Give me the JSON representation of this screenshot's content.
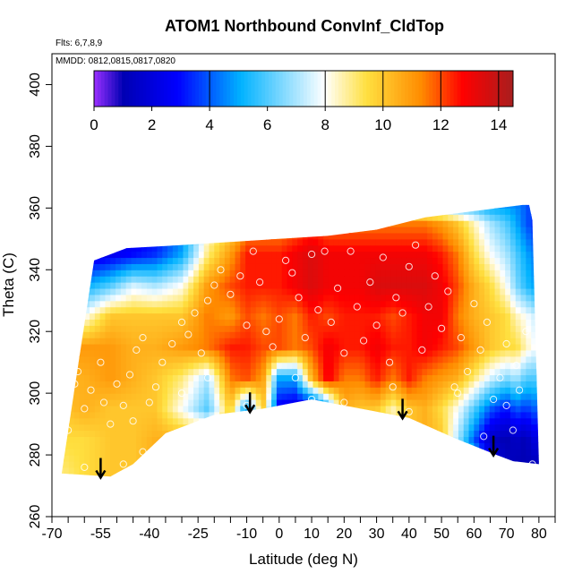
{
  "chart_data": {
    "type": "heatmap",
    "title": "ATOM1 Northbound ConvInf_CldTop",
    "annotations": [
      "Flts: 6,7,8,9",
      "MMDD: 0812,0815,0817,0820"
    ],
    "xlabel": "Latitude (deg N)",
    "ylabel": "Theta (C)",
    "xlim": [
      -70,
      85
    ],
    "ylim": [
      260,
      410
    ],
    "x_ticks": [
      -70,
      -55,
      -40,
      -25,
      -10,
      0,
      10,
      20,
      30,
      40,
      50,
      60,
      70,
      80
    ],
    "x_tick_labels": [
      "-70",
      "-55",
      "-40",
      "-25",
      "-10",
      "0",
      "10",
      "20",
      "30",
      "40",
      "50",
      "60",
      "70",
      "80"
    ],
    "x_minor_ticks": [
      -65,
      -60,
      -50,
      -45,
      -35,
      -30,
      -20,
      -15,
      -5,
      5,
      15,
      25,
      35,
      45,
      55,
      65,
      75,
      85
    ],
    "y_ticks": [
      260,
      280,
      300,
      320,
      340,
      360,
      380,
      400
    ],
    "y_tick_labels": [
      "260",
      "280",
      "300",
      "320",
      "340",
      "360",
      "380",
      "400"
    ],
    "colorbar": {
      "range": [
        0,
        14.5
      ],
      "ticks": [
        0,
        2,
        4,
        6,
        8,
        10,
        12,
        14
      ],
      "tick_labels": [
        "0",
        "2",
        "4",
        "6",
        "8",
        "10",
        "12",
        "14"
      ],
      "divisions": [
        4,
        8,
        10,
        12,
        14
      ],
      "colors": [
        "#9b30ff",
        "#0000b4",
        "#0000ff",
        "#00b2ff",
        "#ffffff",
        "#ffe040",
        "#ff8c00",
        "#ff0000",
        "#a81e1e"
      ],
      "stops": [
        0,
        0.07,
        0.2,
        0.35,
        0.55,
        0.65,
        0.78,
        0.88,
        1.0
      ]
    },
    "field": {
      "lats": [
        -67,
        -60,
        -52,
        -45,
        -38,
        -30,
        -22,
        -15,
        -10,
        -5,
        0,
        5,
        10,
        15,
        20,
        25,
        30,
        35,
        40,
        45,
        50,
        55,
        60,
        65,
        70,
        73,
        76,
        78
      ],
      "thetas": [
        275,
        285,
        295,
        305,
        315,
        325,
        335,
        345,
        355,
        362
      ],
      "values": [
        [
          9,
          9.5,
          10,
          10,
          10.5,
          10.5,
          10,
          10,
          10,
          10,
          10,
          10,
          10,
          10,
          10,
          10,
          10,
          10,
          10,
          10.5,
          10,
          9,
          7,
          3,
          1.5,
          1,
          1,
          1
        ],
        [
          9.5,
          9.5,
          10,
          10,
          10.5,
          10.5,
          10,
          10,
          4.5,
          10,
          3,
          2,
          2,
          3,
          9.5,
          10,
          10,
          9,
          10,
          10.5,
          10,
          7,
          4,
          1.5,
          1,
          1.5,
          1,
          2
        ],
        [
          10,
          10.5,
          10,
          10,
          10,
          8,
          6,
          10,
          4.5,
          10,
          2.5,
          2,
          1.5,
          5,
          10.5,
          10,
          10,
          8.5,
          10,
          10.5,
          9.5,
          8,
          6,
          4,
          3,
          4,
          3.5,
          4
        ],
        [
          10.5,
          10.5,
          11,
          10.5,
          10,
          9,
          7,
          11.5,
          12,
          11,
          5,
          5,
          10.5,
          13,
          11.5,
          11.5,
          12.5,
          11.5,
          12.5,
          11.5,
          11,
          10.5,
          9,
          7.5,
          6.5,
          7,
          6,
          6
        ],
        [
          11,
          11,
          11,
          10.5,
          10.5,
          11,
          11.5,
          12.5,
          12.5,
          12,
          12,
          11.5,
          12,
          13,
          12.5,
          12.5,
          13,
          12.5,
          12.5,
          13,
          12.5,
          12,
          11,
          10,
          9.5,
          9.5,
          8.5,
          8
        ],
        [
          8.5,
          8,
          10,
          10,
          10,
          10,
          11.5,
          11,
          12,
          11.5,
          12,
          11.5,
          12.5,
          12,
          12.5,
          12.5,
          12.5,
          12,
          12.5,
          13,
          13,
          11.5,
          10.5,
          10,
          9.5,
          8.5,
          8,
          7.5
        ],
        [
          5,
          5,
          6,
          7.5,
          7,
          8,
          11,
          12,
          12.5,
          12.5,
          12.5,
          13,
          13.5,
          13,
          13,
          13,
          13.5,
          13.5,
          13.5,
          13.5,
          13,
          12,
          10.5,
          9.5,
          8,
          6.5,
          5.5,
          5
        ],
        [
          2,
          2,
          2.5,
          3,
          3.5,
          5,
          9,
          11,
          12.5,
          12.5,
          12.5,
          13,
          13.5,
          13,
          13,
          13,
          13,
          13,
          13,
          13,
          12.5,
          11.5,
          9.5,
          8,
          7,
          6,
          5,
          4.5
        ],
        [
          2,
          2,
          2,
          2,
          2.5,
          4,
          8,
          9.5,
          11,
          11,
          11,
          11.5,
          12,
          11.5,
          11.5,
          11.5,
          11.5,
          11.5,
          11.5,
          11.5,
          11,
          10,
          8.5,
          7,
          6,
          5,
          4,
          3.5
        ],
        [
          2,
          2,
          2,
          2,
          2.5,
          4,
          7,
          8,
          8.5,
          8.5,
          9,
          9,
          9.5,
          9.5,
          9.5,
          9.5,
          9,
          8,
          7,
          6,
          5.5,
          5,
          5,
          4.5,
          4.5,
          4.5,
          4,
          3.5
        ]
      ]
    },
    "domain_top": [
      [
        -57,
        343
      ],
      [
        -47,
        347
      ],
      [
        -30,
        348
      ],
      [
        -15,
        349
      ],
      [
        0,
        350
      ],
      [
        15,
        351
      ],
      [
        30,
        353
      ],
      [
        45,
        357
      ],
      [
        60,
        359
      ],
      [
        75,
        361
      ],
      [
        77,
        361
      ],
      [
        78,
        356
      ]
    ],
    "domain_bottom": [
      [
        -67,
        274
      ],
      [
        -52,
        273
      ],
      [
        -45,
        277
      ],
      [
        -35,
        287
      ],
      [
        -20,
        293
      ],
      [
        -5,
        295
      ],
      [
        10,
        298
      ],
      [
        20,
        296
      ],
      [
        30,
        294
      ],
      [
        40,
        292
      ],
      [
        55,
        285
      ],
      [
        67,
        280
      ],
      [
        72,
        278
      ],
      [
        80,
        277
      ]
    ],
    "data_points": [
      [
        -62,
        307
      ],
      [
        -58,
        301
      ],
      [
        -54,
        297
      ],
      [
        -52,
        290
      ],
      [
        -50,
        303
      ],
      [
        -48,
        296
      ],
      [
        -46,
        306
      ],
      [
        -44,
        314
      ],
      [
        -42,
        318
      ],
      [
        -60,
        276
      ],
      [
        -65,
        288
      ],
      [
        -63,
        303
      ],
      [
        -48,
        277
      ],
      [
        -42,
        281
      ],
      [
        -57,
        272
      ],
      [
        -45,
        291
      ],
      [
        -36,
        310
      ],
      [
        -33,
        316
      ],
      [
        -30,
        323
      ],
      [
        -28,
        319
      ],
      [
        -26,
        326
      ],
      [
        -24,
        313
      ],
      [
        -22,
        330
      ],
      [
        -20,
        335
      ],
      [
        -18,
        340
      ],
      [
        -15,
        332
      ],
      [
        -12,
        338
      ],
      [
        -10,
        322
      ],
      [
        -8,
        346
      ],
      [
        -6,
        336
      ],
      [
        -4,
        320
      ],
      [
        -2,
        315
      ],
      [
        0,
        324
      ],
      [
        2,
        343
      ],
      [
        4,
        339
      ],
      [
        6,
        331
      ],
      [
        8,
        318
      ],
      [
        10,
        345
      ],
      [
        12,
        327
      ],
      [
        14,
        346
      ],
      [
        16,
        323
      ],
      [
        18,
        334
      ],
      [
        20,
        313
      ],
      [
        22,
        346
      ],
      [
        24,
        328
      ],
      [
        26,
        317
      ],
      [
        28,
        336
      ],
      [
        30,
        322
      ],
      [
        32,
        344
      ],
      [
        34,
        310
      ],
      [
        36,
        331
      ],
      [
        38,
        326
      ],
      [
        40,
        341
      ],
      [
        42,
        348
      ],
      [
        44,
        314
      ],
      [
        46,
        328
      ],
      [
        48,
        338
      ],
      [
        50,
        321
      ],
      [
        52,
        333
      ],
      [
        54,
        302
      ],
      [
        56,
        318
      ],
      [
        58,
        307
      ],
      [
        60,
        329
      ],
      [
        62,
        314
      ],
      [
        64,
        323
      ],
      [
        66,
        298
      ],
      [
        68,
        305
      ],
      [
        70,
        316
      ],
      [
        72,
        288
      ],
      [
        74,
        301
      ],
      [
        76,
        320
      ],
      [
        78,
        277
      ],
      [
        -10,
        296
      ],
      [
        10,
        298
      ],
      [
        20,
        297
      ],
      [
        40,
        294
      ],
      [
        -30,
        300
      ],
      [
        -38,
        302
      ],
      [
        -55,
        310
      ],
      [
        -60,
        295
      ],
      [
        -40,
        297
      ],
      [
        -22,
        305
      ],
      [
        5,
        305
      ],
      [
        35,
        302
      ],
      [
        55,
        300
      ],
      [
        70,
        296
      ],
      [
        63,
        286
      ],
      [
        73,
        309
      ]
    ],
    "arrows": [
      -55,
      -9,
      38,
      66
    ]
  }
}
